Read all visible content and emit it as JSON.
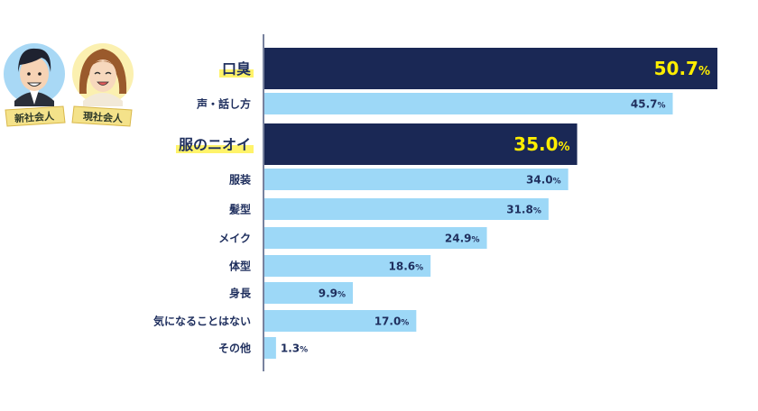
{
  "characters": [
    {
      "badge": "新社会人"
    },
    {
      "badge": "現社会人"
    }
  ],
  "chart_data": {
    "type": "bar",
    "orientation": "horizontal",
    "categories": [
      "口臭",
      "声・話し方",
      "服のニオイ",
      "服装",
      "髪型",
      "メイク",
      "体型",
      "身長",
      "気になることはない",
      "その他"
    ],
    "values": [
      50.7,
      45.7,
      35.0,
      34.0,
      31.8,
      24.9,
      18.6,
      9.9,
      17.0,
      1.3
    ],
    "value_labels": [
      "50.7",
      "45.7",
      "35.0",
      "34.0",
      "31.8",
      "24.9",
      "18.6",
      "9.9",
      "17.0",
      "1.3"
    ],
    "unit": "%",
    "highlighted": [
      "口臭",
      "服のニオイ"
    ],
    "xlim": [
      0,
      51
    ],
    "colors": {
      "bar": "#9dd8f7",
      "highlight_bar": "#1a2855",
      "highlight_value": "#ffee00",
      "label": "#1f2f5e",
      "label_highlight_bg": "#fff36a",
      "value": "#1f2f5e"
    }
  }
}
